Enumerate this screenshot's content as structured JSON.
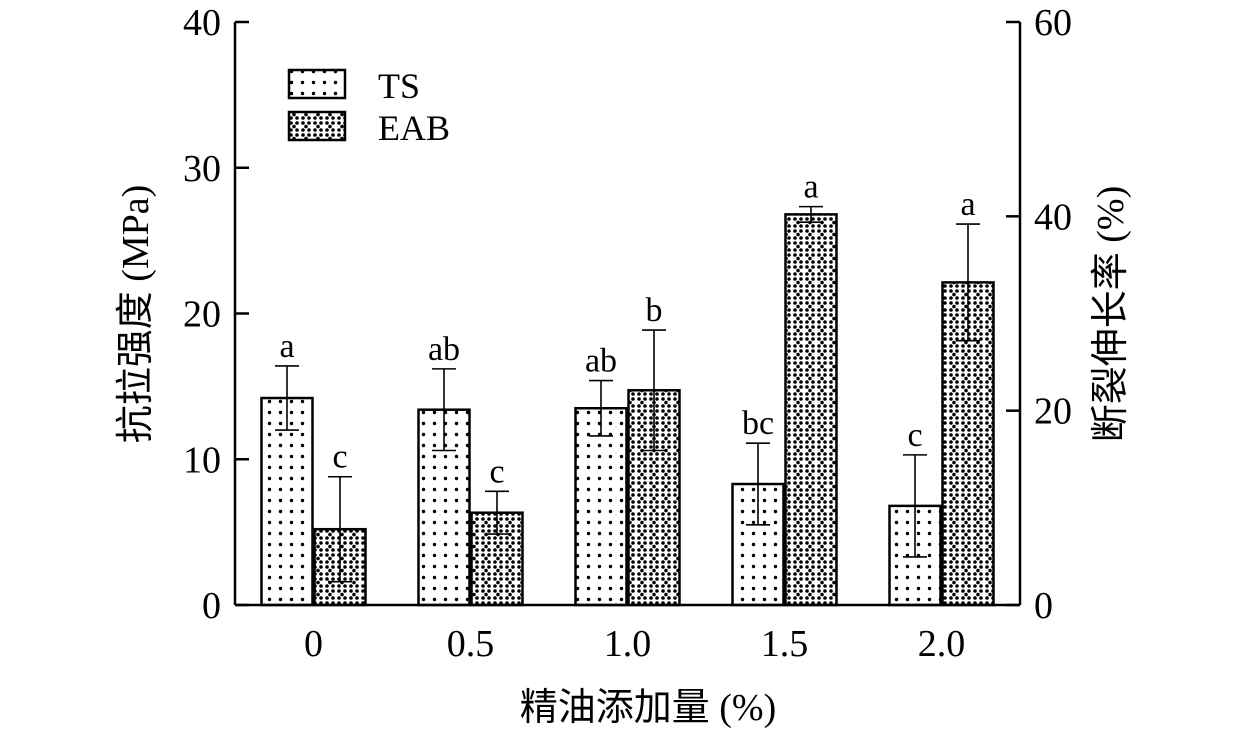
{
  "chart_data": {
    "type": "bar",
    "xlabel": "精油添加量 (%)",
    "ylabel": "抗拉强度 (MPa)",
    "ylabel_right": "断裂伸长率 (%)",
    "categories": [
      "0",
      "0.5",
      "1.0",
      "1.5",
      "2.0"
    ],
    "ylim": [
      0,
      40
    ],
    "ylim_right": [
      0,
      60
    ],
    "yticks": [
      "0",
      "10",
      "20",
      "30",
      "40"
    ],
    "yticks_right": [
      "0",
      "20",
      "40",
      "60"
    ],
    "legend_position": "top-left",
    "grid": false,
    "series": [
      {
        "name": "TS",
        "axis": "left",
        "pattern": "sparse-dots",
        "values": [
          14.2,
          13.4,
          13.5,
          8.3,
          6.8
        ],
        "errors": [
          2.2,
          2.8,
          1.9,
          2.8,
          3.5
        ],
        "labels": [
          "a",
          "ab",
          "ab",
          "bc",
          "c"
        ]
      },
      {
        "name": "EAB",
        "axis": "right",
        "pattern": "dense-dots",
        "values": [
          7.8,
          9.5,
          22.1,
          40.2,
          33.2
        ],
        "errors": [
          5.4,
          2.2,
          6.2,
          0.8,
          6.0
        ],
        "labels": [
          "c",
          "c",
          "b",
          "a",
          "a"
        ]
      }
    ]
  }
}
